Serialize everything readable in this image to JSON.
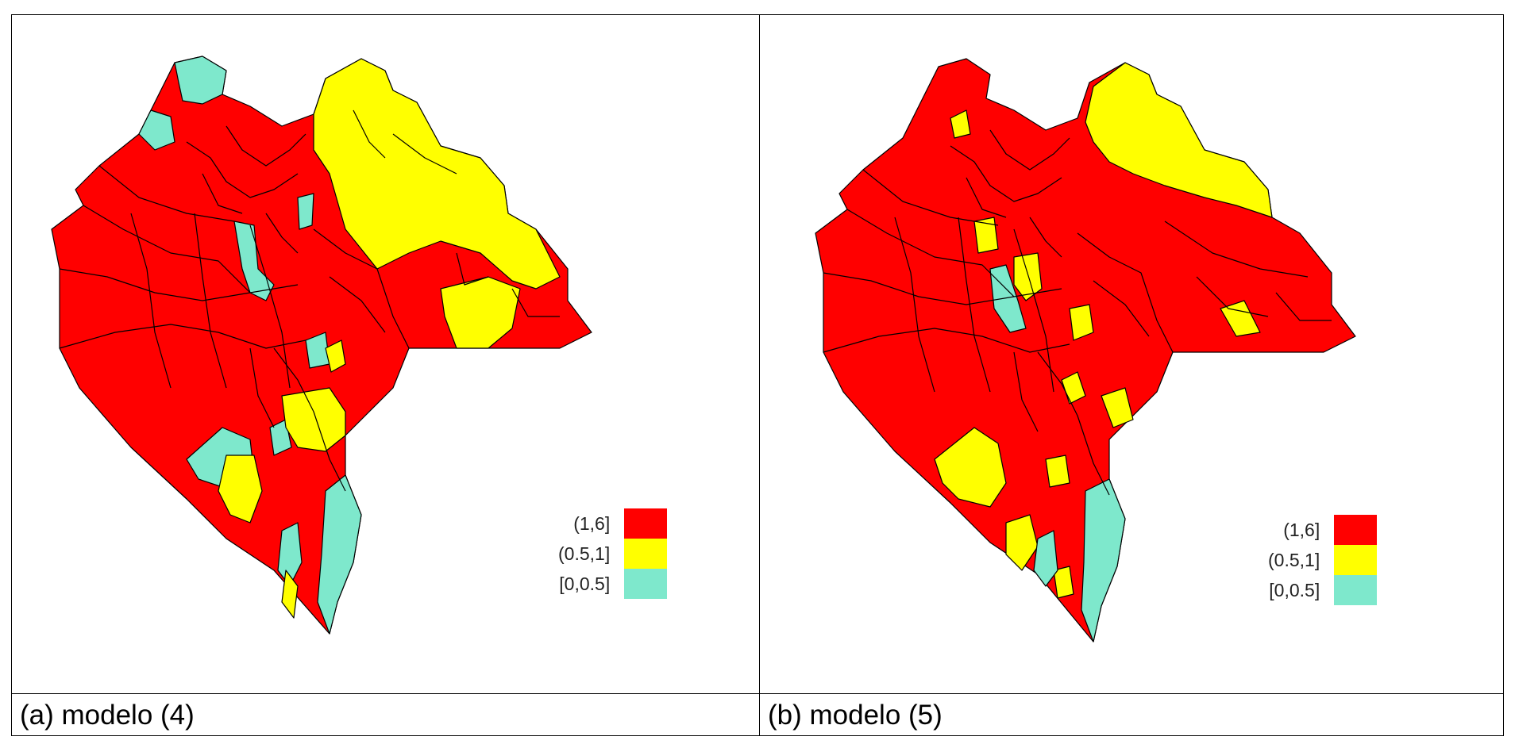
{
  "colors": {
    "high": "#ff0000",
    "mid": "#ffff00",
    "low": "#7ee8cc",
    "border": "#000000"
  },
  "panels": [
    {
      "caption": "(a) modelo (4)",
      "legend": [
        {
          "label": "(1,6]",
          "color": "#ff0000"
        },
        {
          "label": "(0.5,1]",
          "color": "#ffff00"
        },
        {
          "label": "[0,0.5]",
          "color": "#7ee8cc"
        }
      ]
    },
    {
      "caption": "(b) modelo (5)",
      "legend": [
        {
          "label": "(1,6]",
          "color": "#ff0000"
        },
        {
          "label": "(0.5,1]",
          "color": "#ffff00"
        },
        {
          "label": "[0,0.5]",
          "color": "#7ee8cc"
        }
      ]
    }
  ]
}
